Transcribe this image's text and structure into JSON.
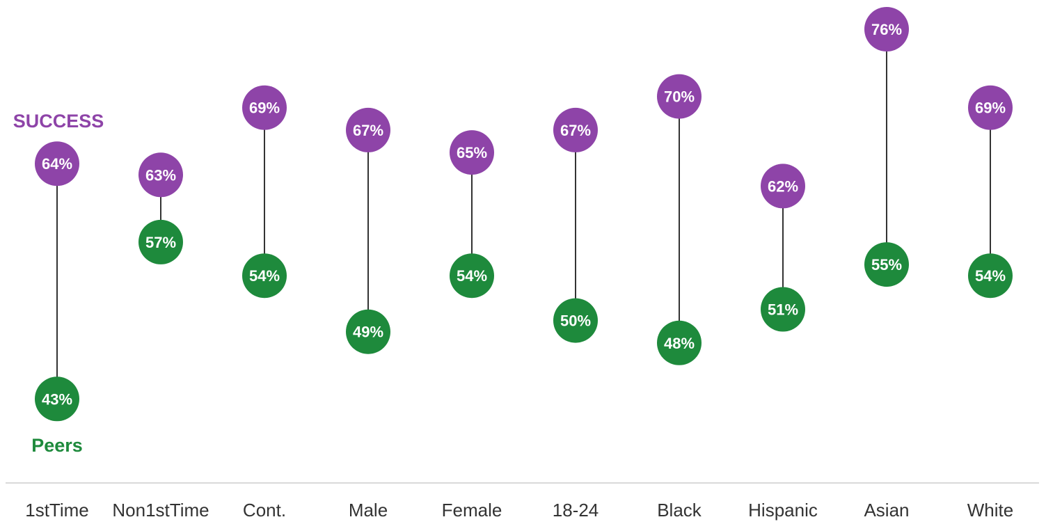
{
  "chart_data": {
    "type": "scatter",
    "subtype": "dumbbell",
    "categories": [
      "1stTime",
      "Non1stTime",
      "Cont.",
      "Male",
      "Female",
      "18-24",
      "Black",
      "Hispanic",
      "Asian",
      "White"
    ],
    "series": [
      {
        "name": "SUCCESS",
        "color": "#8e44a8",
        "values": [
          64,
          63,
          69,
          67,
          65,
          67,
          70,
          62,
          76,
          69
        ],
        "labels": [
          "64%",
          "63%",
          "69%",
          "67%",
          "65%",
          "67%",
          "70%",
          "62%",
          "76%",
          "69%"
        ]
      },
      {
        "name": "Peers",
        "color": "#1e8a3c",
        "values": [
          43,
          57,
          54,
          49,
          54,
          50,
          48,
          51,
          55,
          54
        ],
        "labels": [
          "43%",
          "57%",
          "54%",
          "49%",
          "54%",
          "50%",
          "48%",
          "51%",
          "55%",
          "54%"
        ]
      }
    ],
    "legend": "left, next to first category",
    "grid": false
  }
}
